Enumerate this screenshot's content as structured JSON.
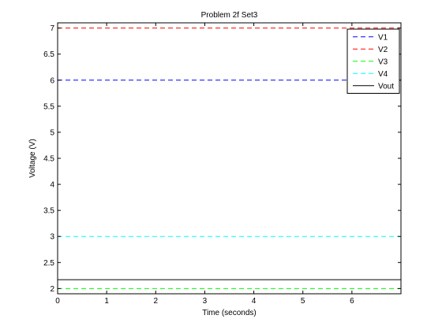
{
  "chart_data": {
    "type": "line",
    "title": "Problem 2f Set3",
    "xlabel": "Time (seconds)",
    "ylabel": "Voltage (V)",
    "xlim": [
      0,
      7
    ],
    "ylim": [
      1.9,
      7.1
    ],
    "xticks": [
      0,
      1,
      2,
      3,
      4,
      5,
      6
    ],
    "yticks": [
      2,
      2.5,
      3,
      3.5,
      4,
      4.5,
      5,
      5.5,
      6,
      6.5,
      7
    ],
    "grid": false,
    "legend_position": "top-right",
    "series": [
      {
        "name": "V1",
        "color": "#0000ff",
        "style": "dashed",
        "x": [
          0,
          7
        ],
        "y": [
          6,
          6
        ]
      },
      {
        "name": "V2",
        "color": "#ff0000",
        "style": "dashed",
        "x": [
          0,
          7
        ],
        "y": [
          7,
          7
        ]
      },
      {
        "name": "V3",
        "color": "#00ff00",
        "style": "dashed",
        "x": [
          0,
          7
        ],
        "y": [
          2,
          2
        ]
      },
      {
        "name": "V4",
        "color": "#00ffff",
        "style": "dashed",
        "x": [
          0,
          7
        ],
        "y": [
          3,
          3
        ]
      },
      {
        "name": "Vout",
        "color": "#000000",
        "style": "solid",
        "x": [
          0,
          7
        ],
        "y": [
          2.17,
          2.17
        ]
      }
    ]
  }
}
